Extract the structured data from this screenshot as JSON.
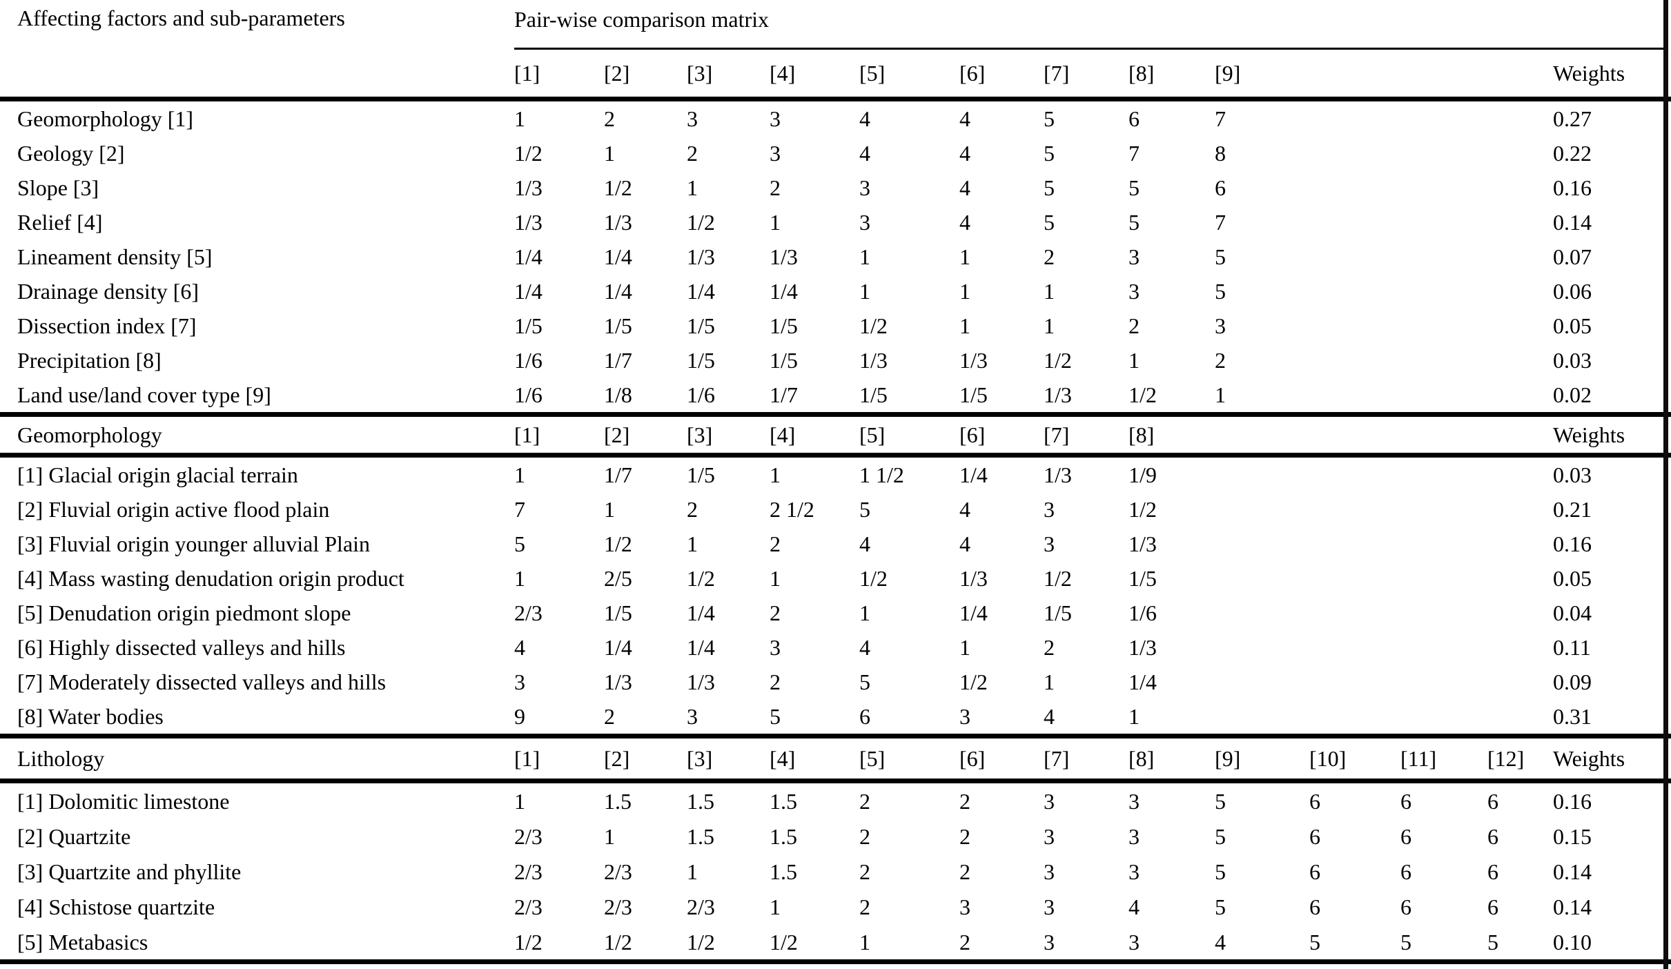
{
  "table": {
    "header": {
      "left_title": "Affecting factors and sub-parameters",
      "right_title": "Pair-wise comparison matrix",
      "weights_label": "Weights"
    },
    "sections": [
      {
        "title": "",
        "columns": [
          "[1]",
          "[2]",
          "[3]",
          "[4]",
          "[5]",
          "[6]",
          "[7]",
          "[8]",
          "[9]"
        ],
        "rows": [
          {
            "label": "Geomorphology [1]",
            "values": [
              "1",
              "2",
              "3",
              "3",
              "4",
              "4",
              "5",
              "6",
              "7"
            ],
            "weight": "0.27"
          },
          {
            "label": "Geology [2]",
            "values": [
              "1/2",
              "1",
              "2",
              "3",
              "4",
              "4",
              "5",
              "7",
              "8"
            ],
            "weight": "0.22"
          },
          {
            "label": "Slope [3]",
            "values": [
              "1/3",
              "1/2",
              "1",
              "2",
              "3",
              "4",
              "5",
              "5",
              "6"
            ],
            "weight": "0.16"
          },
          {
            "label": "Relief [4]",
            "values": [
              "1/3",
              "1/3",
              "1/2",
              "1",
              "3",
              "4",
              "5",
              "5",
              "7"
            ],
            "weight": "0.14"
          },
          {
            "label": "Lineament density [5]",
            "values": [
              "1/4",
              "1/4",
              "1/3",
              "1/3",
              "1",
              "1",
              "2",
              "3",
              "5"
            ],
            "weight": "0.07"
          },
          {
            "label": "Drainage density [6]",
            "values": [
              "1/4",
              "1/4",
              "1/4",
              "1/4",
              "1",
              "1",
              "1",
              "3",
              "5"
            ],
            "weight": "0.06"
          },
          {
            "label": "Dissection index [7]",
            "values": [
              "1/5",
              "1/5",
              "1/5",
              "1/5",
              "1/2",
              "1",
              "1",
              "2",
              "3"
            ],
            "weight": "0.05"
          },
          {
            "label": "Precipitation [8]",
            "values": [
              "1/6",
              "1/7",
              "1/5",
              "1/5",
              "1/3",
              "1/3",
              "1/2",
              "1",
              "2"
            ],
            "weight": "0.03"
          },
          {
            "label": "Land use/land cover type [9]",
            "values": [
              "1/6",
              "1/8",
              "1/6",
              "1/7",
              "1/5",
              "1/5",
              "1/3",
              "1/2",
              "1"
            ],
            "weight": "0.02"
          }
        ]
      },
      {
        "title": "Geomorphology",
        "columns": [
          "[1]",
          "[2]",
          "[3]",
          "[4]",
          "[5]",
          "[6]",
          "[7]",
          "[8]"
        ],
        "rows": [
          {
            "label": "[1] Glacial origin glacial terrain",
            "values": [
              "1",
              "1/7",
              "1/5",
              "1",
              "1 1/2",
              "1/4",
              "1/3",
              "1/9"
            ],
            "weight": "0.03"
          },
          {
            "label": "[2] Fluvial origin active flood plain",
            "values": [
              "7",
              "1",
              "2",
              "2 1/2",
              "5",
              "4",
              "3",
              "1/2"
            ],
            "weight": "0.21"
          },
          {
            "label": "[3] Fluvial origin younger alluvial Plain",
            "values": [
              "5",
              "1/2",
              "1",
              "2",
              "4",
              "4",
              "3",
              "1/3"
            ],
            "weight": "0.16"
          },
          {
            "label": "[4] Mass wasting denudation origin product",
            "values": [
              "1",
              "2/5",
              "1/2",
              "1",
              "1/2",
              "1/3",
              "1/2",
              "1/5"
            ],
            "weight": "0.05"
          },
          {
            "label": "[5] Denudation origin piedmont slope",
            "values": [
              "2/3",
              "1/5",
              "1/4",
              "2",
              "1",
              "1/4",
              "1/5",
              "1/6"
            ],
            "weight": "0.04"
          },
          {
            "label": "[6] Highly dissected valleys and hills",
            "values": [
              "4",
              "1/4",
              "1/4",
              "3",
              "4",
              "1",
              "2",
              "1/3"
            ],
            "weight": "0.11"
          },
          {
            "label": "[7] Moderately dissected valleys and hills",
            "values": [
              "3",
              "1/3",
              "1/3",
              "2",
              "5",
              "1/2",
              "1",
              "1/4"
            ],
            "weight": "0.09"
          },
          {
            "label": "[8] Water bodies",
            "values": [
              "9",
              "2",
              "3",
              "5",
              "6",
              "3",
              "4",
              "1"
            ],
            "weight": "0.31"
          }
        ]
      },
      {
        "title": "Lithology",
        "columns": [
          "[1]",
          "[2]",
          "[3]",
          "[4]",
          "[5]",
          "[6]",
          "[7]",
          "[8]",
          "[9]",
          "[10]",
          "[11]",
          "[12]"
        ],
        "rows": [
          {
            "label": "[1] Dolomitic limestone",
            "values": [
              "1",
              "1.5",
              "1.5",
              "1.5",
              "2",
              "2",
              "3",
              "3",
              "5",
              "6",
              "6",
              "6"
            ],
            "weight": "0.16"
          },
          {
            "label": "[2] Quartzite",
            "values": [
              "2/3",
              "1",
              "1.5",
              "1.5",
              "2",
              "2",
              "3",
              "3",
              "5",
              "6",
              "6",
              "6"
            ],
            "weight": "0.15"
          },
          {
            "label": "[3] Quartzite and phyllite",
            "values": [
              "2/3",
              "2/3",
              "1",
              "1.5",
              "2",
              "2",
              "3",
              "3",
              "5",
              "6",
              "6",
              "6"
            ],
            "weight": "0.14"
          },
          {
            "label": "[4] Schistose quartzite",
            "values": [
              "2/3",
              "2/3",
              "2/3",
              "1",
              "2",
              "3",
              "3",
              "4",
              "5",
              "6",
              "6",
              "6"
            ],
            "weight": "0.14"
          },
          {
            "label": "[5] Metabasics",
            "values": [
              "1/2",
              "1/2",
              "1/2",
              "1/2",
              "1",
              "2",
              "3",
              "3",
              "4",
              "5",
              "5",
              "5"
            ],
            "weight": "0.10"
          }
        ]
      }
    ]
  }
}
